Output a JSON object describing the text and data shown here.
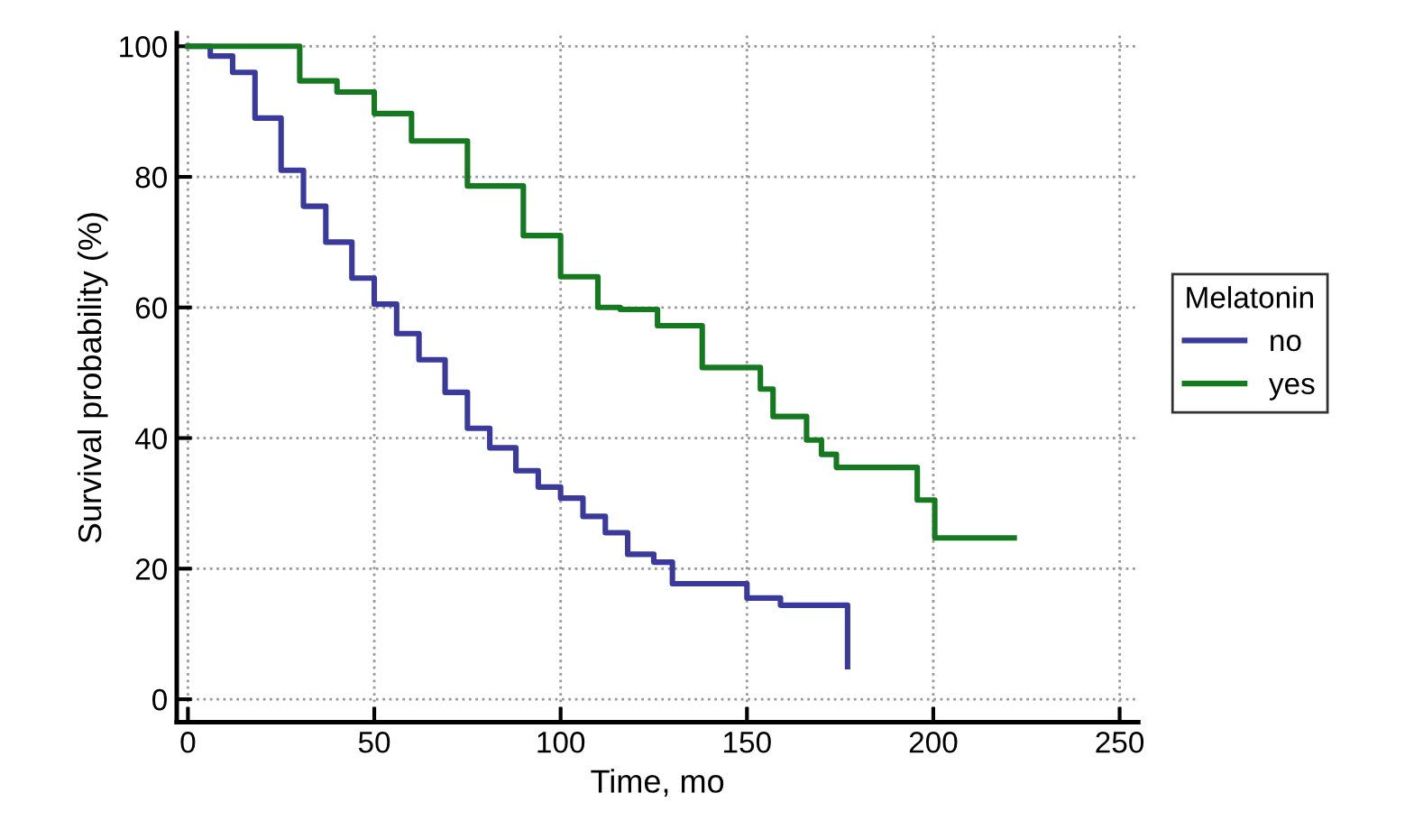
{
  "chart_data": {
    "type": "step",
    "xlabel": "Time, mo",
    "ylabel": "Survival probability (%)",
    "legend_title": "Melatonin",
    "legend": "right",
    "xlim": [
      -3,
      255
    ],
    "ylim": [
      -3.5,
      102
    ],
    "xticks": [
      0,
      50,
      100,
      150,
      200,
      250
    ],
    "yticks": [
      0,
      20,
      40,
      60,
      80,
      100
    ],
    "grid": true,
    "line_style": "solid",
    "marker": "none",
    "series": [
      {
        "name": "no",
        "color": "#3a3a9c",
        "x": [
          0,
          6,
          12,
          18,
          25,
          31,
          37,
          44,
          50,
          56,
          62,
          69,
          75,
          81,
          88,
          94,
          100,
          106,
          112,
          118,
          125,
          130,
          140,
          150,
          159,
          170,
          177,
          177
        ],
        "values": [
          100,
          98.5,
          96,
          89,
          81,
          75.5,
          70,
          64.5,
          60.5,
          56,
          52,
          47,
          41.5,
          38.5,
          35,
          32.5,
          30.8,
          28,
          25.5,
          22.2,
          21,
          17.7,
          17.7,
          15.5,
          14.4,
          14.4,
          14.4,
          5
        ]
      },
      {
        "name": "yes",
        "color": "#157a1f",
        "x": [
          0,
          20,
          30,
          40,
          50,
          60,
          75,
          90,
          100,
          110,
          116,
          126,
          138,
          142,
          153.6,
          157,
          166,
          170,
          174,
          195.7,
          200.4,
          221.7
        ],
        "values": [
          100,
          100,
          94.7,
          93,
          89.7,
          85.5,
          78.6,
          71,
          64.7,
          60,
          59.7,
          57.2,
          50.8,
          50.8,
          47.5,
          43.3,
          39.7,
          37.5,
          35.5,
          30.5,
          24.7,
          24.7
        ]
      }
    ]
  }
}
